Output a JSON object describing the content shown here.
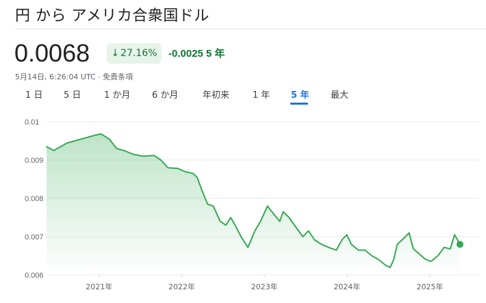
{
  "header": {
    "title": "円 から アメリカ合衆国ドル",
    "price": "0.0068",
    "pct_change": "27.16%",
    "abs_change": "-0.0025 5 年",
    "meta": "5月14日, 6:26:04 UTC · 免責条項"
  },
  "tabs": [
    {
      "label": "1 日",
      "active": false
    },
    {
      "label": "5 日",
      "active": false
    },
    {
      "label": "1 か月",
      "active": false
    },
    {
      "label": "6 か月",
      "active": false
    },
    {
      "label": "年初来",
      "active": false
    },
    {
      "label": "1 年",
      "active": false
    },
    {
      "label": "5 年",
      "active": true
    },
    {
      "label": "最大",
      "active": false
    }
  ],
  "colors": {
    "line": "#34a853",
    "fill": "#34a853",
    "positive_text": "#137333",
    "badge_bg": "#e6f4ea",
    "active_tab": "#1a73e8"
  },
  "icons": {
    "change_arrow": "arrow-down-icon"
  },
  "chart_data": {
    "type": "area",
    "ylim": [
      0.006,
      0.01
    ],
    "y_ticks": [
      "0.01",
      "0.009",
      "0.008",
      "0.007",
      "0.006"
    ],
    "x_ticks": [
      "2021年",
      "2022年",
      "2023年",
      "2024年",
      "2025年"
    ],
    "grid": true,
    "x_range": [
      "2020-05-14",
      "2025-05-14"
    ],
    "series": [
      {
        "points": [
          [
            "2020-05-14",
            0.00935
          ],
          [
            "2020-06-15",
            0.00925
          ],
          [
            "2020-07-15",
            0.00935
          ],
          [
            "2020-08-15",
            0.00945
          ],
          [
            "2020-09-15",
            0.0095
          ],
          [
            "2020-10-15",
            0.00955
          ],
          [
            "2020-11-15",
            0.0096
          ],
          [
            "2020-12-15",
            0.00965
          ],
          [
            "2021-01-10",
            0.00968
          ],
          [
            "2021-02-15",
            0.00955
          ],
          [
            "2021-03-20",
            0.0093
          ],
          [
            "2021-04-20",
            0.00925
          ],
          [
            "2021-06-01",
            0.00915
          ],
          [
            "2021-07-15",
            0.0091
          ],
          [
            "2021-09-01",
            0.00912
          ],
          [
            "2021-10-01",
            0.009
          ],
          [
            "2021-11-01",
            0.0088
          ],
          [
            "2021-12-15",
            0.00878
          ],
          [
            "2022-01-15",
            0.0087
          ],
          [
            "2022-02-20",
            0.00865
          ],
          [
            "2022-03-10",
            0.00855
          ],
          [
            "2022-04-01",
            0.0082
          ],
          [
            "2022-04-25",
            0.00785
          ],
          [
            "2022-05-20",
            0.0078
          ],
          [
            "2022-06-20",
            0.0074
          ],
          [
            "2022-07-15",
            0.0073
          ],
          [
            "2022-08-05",
            0.0075
          ],
          [
            "2022-08-25",
            0.0073
          ],
          [
            "2022-09-20",
            0.007
          ],
          [
            "2022-10-20",
            0.00672
          ],
          [
            "2022-11-20",
            0.00715
          ],
          [
            "2022-12-15",
            0.0074
          ],
          [
            "2023-01-15",
            0.0078
          ],
          [
            "2023-02-10",
            0.0076
          ],
          [
            "2023-03-10",
            0.0074
          ],
          [
            "2023-03-25",
            0.00765
          ],
          [
            "2023-04-20",
            0.0075
          ],
          [
            "2023-05-20",
            0.00725
          ],
          [
            "2023-06-20",
            0.007
          ],
          [
            "2023-07-15",
            0.00715
          ],
          [
            "2023-08-10",
            0.00692
          ],
          [
            "2023-09-10",
            0.0068
          ],
          [
            "2023-10-20",
            0.0067
          ],
          [
            "2023-11-15",
            0.00665
          ],
          [
            "2023-12-10",
            0.00692
          ],
          [
            "2023-12-31",
            0.00705
          ],
          [
            "2024-01-20",
            0.0068
          ],
          [
            "2024-02-20",
            0.00665
          ],
          [
            "2024-03-20",
            0.00665
          ],
          [
            "2024-04-20",
            0.0065
          ],
          [
            "2024-05-20",
            0.0064
          ],
          [
            "2024-06-20",
            0.00625
          ],
          [
            "2024-07-10",
            0.0062
          ],
          [
            "2024-07-25",
            0.0064
          ],
          [
            "2024-08-10",
            0.0068
          ],
          [
            "2024-09-15",
            0.007
          ],
          [
            "2024-10-01",
            0.0071
          ],
          [
            "2024-10-20",
            0.00668
          ],
          [
            "2024-11-15",
            0.00655
          ],
          [
            "2024-12-10",
            0.00642
          ],
          [
            "2025-01-05",
            0.00635
          ],
          [
            "2025-02-05",
            0.0065
          ],
          [
            "2025-03-05",
            0.00672
          ],
          [
            "2025-04-01",
            0.00668
          ],
          [
            "2025-04-20",
            0.00705
          ],
          [
            "2025-05-14",
            0.0068
          ]
        ]
      }
    ]
  }
}
